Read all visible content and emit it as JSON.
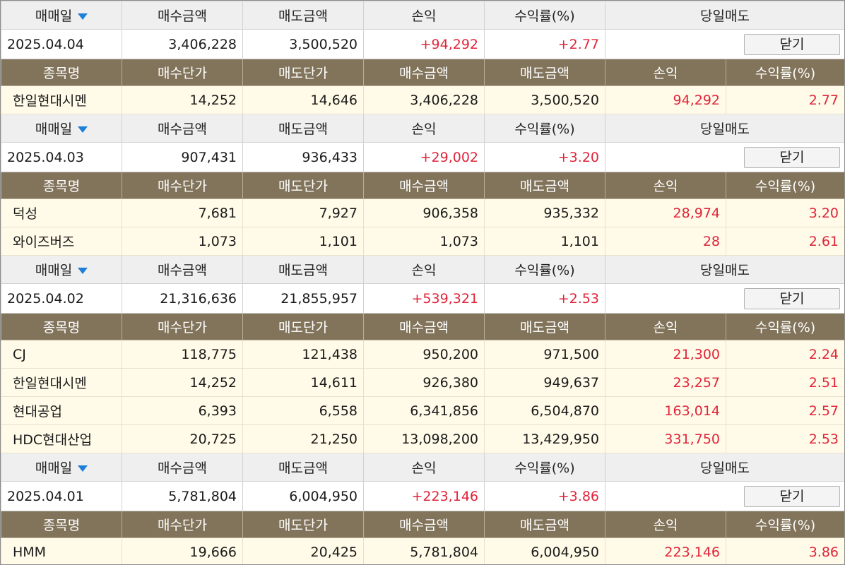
{
  "labels": {
    "trade_date": "매매일",
    "buy_amount": "매수금액",
    "sell_amount": "매도금액",
    "profit": "손익",
    "return_rate": "수익률(%)",
    "same_day_sell": "당일매도",
    "close_button": "닫기",
    "stock_name": "종목명",
    "buy_price": "매수단가",
    "sell_price": "매도단가"
  },
  "colors": {
    "positive": "#e0243a",
    "sub_header_bg": "#82745b",
    "row_bg": "#fffbe8",
    "header_bg": "#efefef",
    "sort_arrow": "#1d7fd8"
  },
  "groups": [
    {
      "date": "2025.04.04",
      "buy_amount": "3,406,228",
      "sell_amount": "3,500,520",
      "profit": "+94,292",
      "return_rate": "+2.77",
      "items": [
        {
          "name": "한일현대시멘",
          "buy_price": "14,252",
          "sell_price": "14,646",
          "buy_amount": "3,406,228",
          "sell_amount": "3,500,520",
          "profit": "94,292",
          "return_rate": "2.77"
        }
      ]
    },
    {
      "date": "2025.04.03",
      "buy_amount": "907,431",
      "sell_amount": "936,433",
      "profit": "+29,002",
      "return_rate": "+3.20",
      "items": [
        {
          "name": "덕성",
          "buy_price": "7,681",
          "sell_price": "7,927",
          "buy_amount": "906,358",
          "sell_amount": "935,332",
          "profit": "28,974",
          "return_rate": "3.20"
        },
        {
          "name": "와이즈버즈",
          "buy_price": "1,073",
          "sell_price": "1,101",
          "buy_amount": "1,073",
          "sell_amount": "1,101",
          "profit": "28",
          "return_rate": "2.61"
        }
      ]
    },
    {
      "date": "2025.04.02",
      "buy_amount": "21,316,636",
      "sell_amount": "21,855,957",
      "profit": "+539,321",
      "return_rate": "+2.53",
      "items": [
        {
          "name": "CJ",
          "buy_price": "118,775",
          "sell_price": "121,438",
          "buy_amount": "950,200",
          "sell_amount": "971,500",
          "profit": "21,300",
          "return_rate": "2.24"
        },
        {
          "name": "한일현대시멘",
          "buy_price": "14,252",
          "sell_price": "14,611",
          "buy_amount": "926,380",
          "sell_amount": "949,637",
          "profit": "23,257",
          "return_rate": "2.51"
        },
        {
          "name": "현대공업",
          "buy_price": "6,393",
          "sell_price": "6,558",
          "buy_amount": "6,341,856",
          "sell_amount": "6,504,870",
          "profit": "163,014",
          "return_rate": "2.57"
        },
        {
          "name": "HDC현대산업",
          "buy_price": "20,725",
          "sell_price": "21,250",
          "buy_amount": "13,098,200",
          "sell_amount": "13,429,950",
          "profit": "331,750",
          "return_rate": "2.53"
        }
      ]
    },
    {
      "date": "2025.04.01",
      "buy_amount": "5,781,804",
      "sell_amount": "6,004,950",
      "profit": "+223,146",
      "return_rate": "+3.86",
      "items": [
        {
          "name": "HMM",
          "buy_price": "19,666",
          "sell_price": "20,425",
          "buy_amount": "5,781,804",
          "sell_amount": "6,004,950",
          "profit": "223,146",
          "return_rate": "3.86"
        }
      ]
    }
  ]
}
